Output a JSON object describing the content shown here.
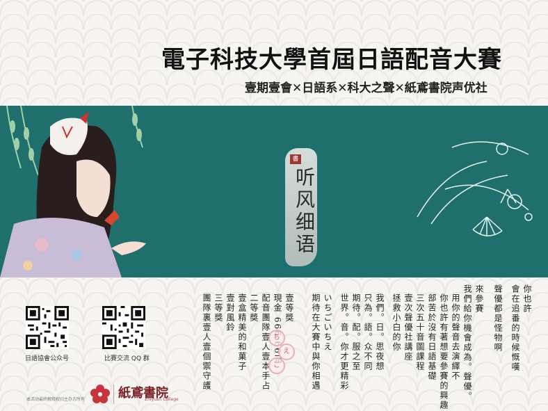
{
  "poster": {
    "title": "電子科技大學首屆日語配音大賽",
    "subtitle": "壹期壹會✕日語系✕科大之聲✕紙鳶書院声优社"
  },
  "banner": {
    "seal_text": "听风细语",
    "seal_stamp": "書",
    "colors": {
      "teal": "#1f6f6c",
      "lineart": "#e6f3ee"
    }
  },
  "qr_codes": [
    {
      "caption": "日語協會公众号"
    },
    {
      "caption": "比賽交流 QQ 群"
    }
  ],
  "prizes": {
    "columns": [
      "團隊裏壹人壹個禦守護",
      "三等獎",
      "壹對風鈴",
      "壹盒精美的和菓子",
      "二等獎",
      "配音團隊壹人壹本手占",
      "現金 666.66元",
      "壹等獎"
    ],
    "bubbles": [
      "ち",
      "え",
      "こ"
    ]
  },
  "message": {
    "columns": [
      "期待在大賽中與你相遇",
      "いちごいちえ",
      "世界。音。你才更精彩",
      "期待。配。服之至",
      "只為。語。众不同",
      "我們。日。思夜想",
      "拯救小白的你",
      "壹次聲優社講座",
      "三次五十音圖課程",
      "部苦於沒有日語基礎",
      "你也許有著想要參賽的興趣",
      "用你的聲音去演繹不",
      "我們給你機會成為。聲優。",
      "來參賽",
      "聲優都是怪物啊",
      "會在追番的時候慨嘆",
      "你也許"
    ]
  },
  "footer": {
    "note": "本活动最终解释权归主办方所有",
    "logo_text": "紙鳶書院",
    "logo_sub": "Zhiyuan College"
  }
}
